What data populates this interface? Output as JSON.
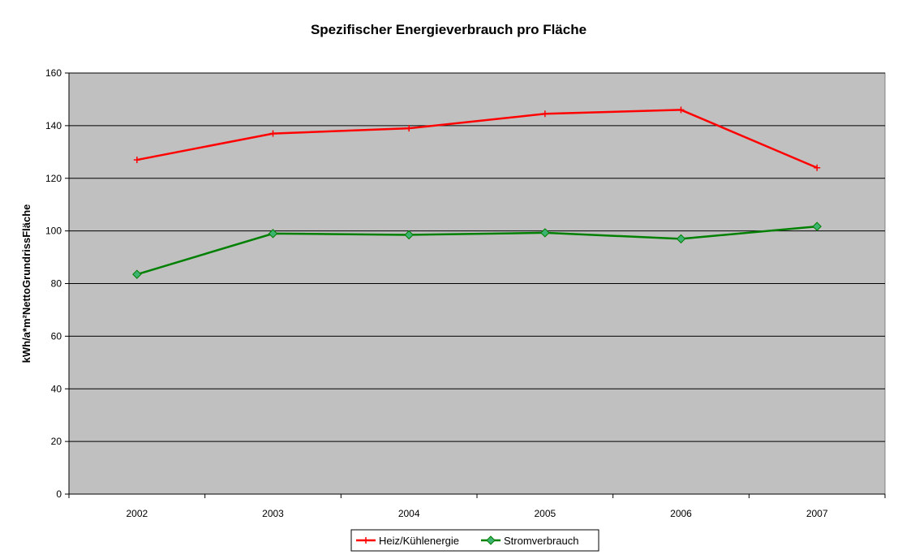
{
  "chart_data": {
    "type": "line",
    "title": "Spezifischer Energieverbrauch pro Fläche",
    "xlabel": "",
    "ylabel": "kWh/a*m²NettoGrundrissFläche",
    "categories": [
      "2002",
      "2003",
      "2004",
      "2005",
      "2006",
      "2007"
    ],
    "ylim": [
      0,
      160
    ],
    "yticks": [
      0,
      20,
      40,
      60,
      80,
      100,
      120,
      140,
      160
    ],
    "grid": true,
    "legend_position": "bottom",
    "series": [
      {
        "name": "Heiz/Kühlenergie",
        "color": "#ff0000",
        "marker": "plus",
        "values": [
          127,
          137,
          139,
          144.5,
          146,
          124
        ]
      },
      {
        "name": "Stromverbrauch",
        "color": "#008000",
        "marker": "diamond",
        "values": [
          83.5,
          99,
          98.5,
          99.3,
          97,
          101.7
        ]
      }
    ],
    "colors": {
      "plot_background": "#c0c0c0",
      "gridline": "#000000"
    }
  }
}
